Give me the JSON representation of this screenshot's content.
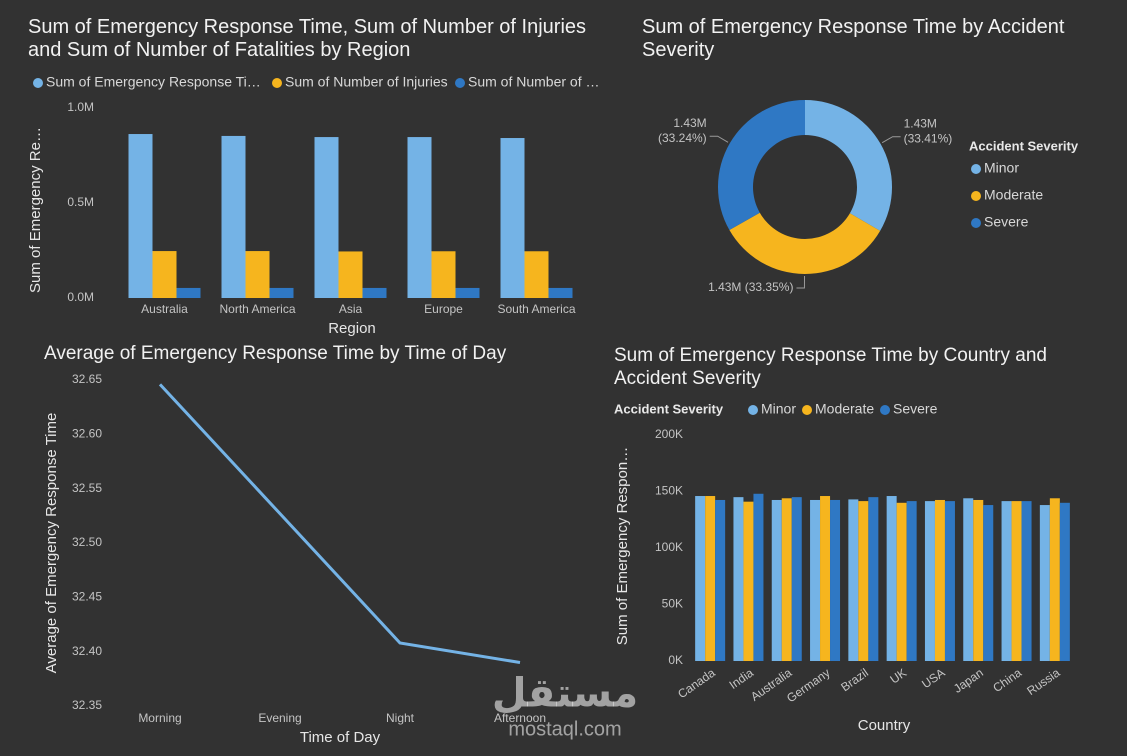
{
  "chart_data": [
    {
      "type": "bar",
      "title": "Sum of Emergency Response Time, Sum of Number of Injuries and Sum of Number of Fatalities by Region",
      "x_label": "Region",
      "y_label": "Sum of Emergency Re…",
      "categories": [
        "Australia",
        "North America",
        "Asia",
        "Europe",
        "South America"
      ],
      "series": [
        {
          "name": "Sum of Emergency Response Ti…",
          "color": "#74b3e6",
          "values": [
            863000,
            853000,
            847000,
            847000,
            842000
          ]
        },
        {
          "name": "Sum of Number of Injuries",
          "color": "#f6b51e",
          "values": [
            247000,
            247000,
            245000,
            246000,
            246000
          ]
        },
        {
          "name": "Sum of Number of …",
          "color": "#2f78c4",
          "values": [
            53000,
            53000,
            53000,
            53000,
            53000
          ]
        }
      ],
      "ylim": [
        0,
        1000000
      ],
      "yticks": [
        {
          "value": 0,
          "label": "0.0M"
        },
        {
          "value": 500000,
          "label": "0.5M"
        },
        {
          "value": 1000000,
          "label": "1.0M"
        }
      ],
      "grid": false
    },
    {
      "type": "donut",
      "title": "Sum of Emergency Response Time by Accident Severity",
      "legend_title": "Accident Severity",
      "categories": [
        "Minor",
        "Moderate",
        "Severe"
      ],
      "values": [
        1433300,
        1430700,
        1426000
      ],
      "value_labels": [
        "1.43M (33.41%)",
        "1.43M (33.35%)",
        "1.43M (33.24%)"
      ],
      "colors": [
        "#74b3e6",
        "#f6b51e",
        "#2f78c4"
      ]
    },
    {
      "type": "line",
      "title": "Average of Emergency Response Time by Time of Day",
      "x_label": "Time of Day",
      "y_label": "Average of Emergency Response Time",
      "categories": [
        "Morning",
        "Evening",
        "Night",
        "Afternoon"
      ],
      "values": [
        32.646,
        32.527,
        32.408,
        32.39
      ],
      "color": "#74b3e6",
      "ylim": [
        32.35,
        32.65
      ],
      "yticks": [
        32.35,
        {
          "value": 32.4,
          "label": "32.40"
        },
        32.45,
        {
          "value": 32.5,
          "label": "32.50"
        },
        32.55,
        {
          "value": 32.6,
          "label": "32.60"
        },
        32.65
      ],
      "grid": false
    },
    {
      "type": "bar",
      "title": "Sum of Emergency Response Time by Country and Accident Severity",
      "legend_title": "Accident Severity",
      "x_label": "Country",
      "y_label": "Sum of Emergency Respon…",
      "categories": [
        "Canada",
        "India",
        "Australia",
        "Germany",
        "Brazil",
        "UK",
        "USA",
        "Japan",
        "China",
        "Russia"
      ],
      "series": [
        {
          "name": "Minor",
          "color": "#74b3e6",
          "values": [
            146000,
            145000,
            142500,
            142500,
            143000,
            146000,
            141500,
            144000,
            141500,
            138000
          ]
        },
        {
          "name": "Moderate",
          "color": "#f6b51e",
          "values": [
            146000,
            141000,
            144000,
            146000,
            141500,
            140000,
            142500,
            142500,
            141500,
            144000
          ]
        },
        {
          "name": "Severe",
          "color": "#2f78c4",
          "values": [
            142500,
            148000,
            145000,
            142500,
            145000,
            141500,
            141500,
            138000,
            141500,
            140000
          ]
        }
      ],
      "ylim": [
        0,
        200000
      ],
      "yticks": [
        {
          "value": 0,
          "label": "0K"
        },
        {
          "value": 50000,
          "label": "50K"
        },
        {
          "value": 100000,
          "label": "100K"
        },
        {
          "value": 150000,
          "label": "150K"
        },
        {
          "value": 200000,
          "label": "200K"
        }
      ],
      "grid": false
    }
  ],
  "watermark": {
    "arabic": "مستقل",
    "latin": "mostaql.com"
  }
}
